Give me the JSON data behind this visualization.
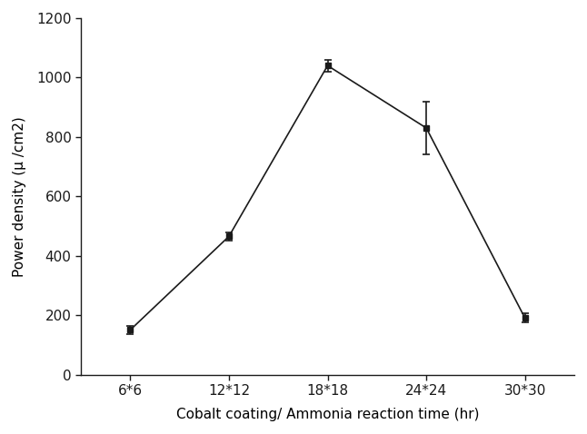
{
  "x_labels": [
    "6*6",
    "12*12",
    "18*18",
    "24*24",
    "30*30"
  ],
  "x_values": [
    1,
    2,
    3,
    4,
    5
  ],
  "y_values": [
    150,
    465,
    1040,
    830,
    190
  ],
  "y_errors": [
    15,
    15,
    20,
    90,
    15
  ],
  "xlabel": "Cobalt coating/ Ammonia reaction time (hr)",
  "ylabel": "Power density (μ /cm2)",
  "ylim": [
    0,
    1200
  ],
  "yticks": [
    0,
    200,
    400,
    600,
    800,
    1000,
    1200
  ],
  "line_color": "#1a1a1a",
  "marker_color": "#1a1a1a",
  "marker_size": 5,
  "capsize": 3,
  "linewidth": 1.2,
  "background_color": "#ffffff"
}
